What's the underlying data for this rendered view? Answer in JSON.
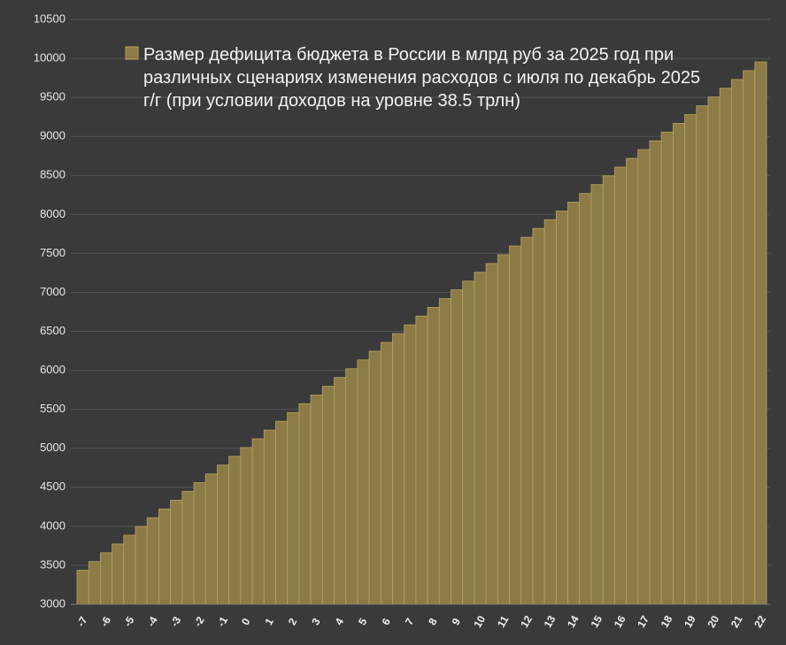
{
  "chart_data": {
    "type": "bar",
    "series": [
      {
        "name": "Размер дефицита бюджета в России в млрд руб за 2025 год при различных сценариях изменения расходов с июля по декабрь 2025 г/г (при условии доходов на уровне 38.5 трлн)",
        "color": "#8c7b46",
        "values": [
          3436,
          3548,
          3661,
          3773,
          3886,
          3998,
          4110,
          4223,
          4335,
          4448,
          4560,
          4672,
          4785,
          4897,
          5010,
          5122,
          5234,
          5347,
          5459,
          5572,
          5684,
          5796,
          5909,
          6021,
          6134,
          6246,
          6358,
          6471,
          6583,
          6696,
          6808,
          6920,
          7033,
          7145,
          7258,
          7370,
          7482,
          7595,
          7707,
          7820,
          7932,
          8044,
          8157,
          8269,
          8382,
          8494,
          8606,
          8719,
          8831,
          8944,
          9056,
          9168,
          9281,
          9393,
          9506,
          9618,
          9730,
          9843,
          9955
        ]
      }
    ],
    "categories": [
      "-7",
      null,
      "-6",
      null,
      "-5",
      null,
      "-4",
      null,
      "-3",
      null,
      "-2",
      null,
      "-1",
      null,
      "0",
      null,
      "1",
      null,
      "2",
      null,
      "3",
      null,
      "4",
      null,
      "5",
      null,
      "6",
      null,
      "7",
      null,
      "8",
      null,
      "9",
      null,
      "10",
      null,
      "11",
      null,
      "12",
      null,
      "13",
      null,
      "14",
      null,
      "15",
      null,
      "16",
      null,
      "17",
      null,
      "18",
      null,
      "19",
      null,
      "20",
      null,
      "21",
      null,
      "22"
    ],
    "ylim": [
      3000,
      10500
    ],
    "yticks": [
      3000,
      3500,
      4000,
      4500,
      5000,
      5500,
      6000,
      6500,
      7000,
      7500,
      8000,
      8500,
      9000,
      9500,
      10000,
      10500
    ],
    "grid": true
  }
}
